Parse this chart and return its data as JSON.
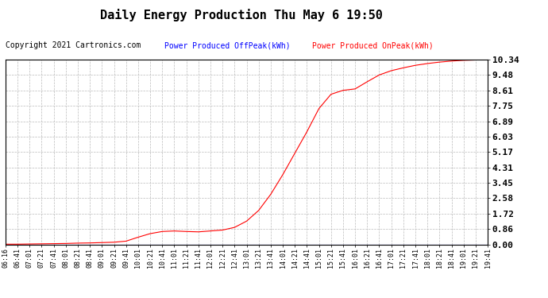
{
  "title": "Daily Energy Production Thu May 6 19:50",
  "copyright": "Copyright 2021 Cartronics.com",
  "legend_offpeak": "Power Produced OffPeak(kWh)",
  "legend_onpeak": "Power Produced OnPeak(kWh)",
  "offpeak_color": "blue",
  "onpeak_color": "red",
  "y_ticks": [
    0.0,
    0.86,
    1.72,
    2.58,
    3.45,
    4.31,
    5.17,
    6.03,
    6.89,
    7.75,
    8.61,
    9.48,
    10.34
  ],
  "ylim": [
    0.0,
    10.34
  ],
  "x_labels": [
    "06:16",
    "06:41",
    "07:01",
    "07:21",
    "07:41",
    "08:01",
    "08:21",
    "08:41",
    "09:01",
    "09:21",
    "09:41",
    "10:01",
    "10:21",
    "10:41",
    "11:01",
    "11:21",
    "11:41",
    "12:01",
    "12:21",
    "12:41",
    "13:01",
    "13:21",
    "13:41",
    "14:01",
    "14:21",
    "14:41",
    "15:01",
    "15:21",
    "15:41",
    "16:01",
    "16:21",
    "16:41",
    "17:01",
    "17:21",
    "17:41",
    "18:01",
    "18:21",
    "18:41",
    "19:01",
    "19:21",
    "19:41"
  ],
  "background_color": "white",
  "grid_color": "#bbbbbb",
  "title_fontsize": 11,
  "copyright_fontsize": 7,
  "legend_fontsize": 7,
  "tick_fontsize": 6,
  "ytick_fontsize": 8,
  "onpeak_keypoints_x": [
    0,
    1,
    2,
    3,
    4,
    5,
    6,
    7,
    8,
    9,
    10,
    11,
    12,
    13,
    14,
    15,
    16,
    17,
    18,
    19,
    20,
    21,
    22,
    23,
    24,
    25,
    26,
    27,
    28,
    29,
    30,
    31,
    32,
    33,
    34,
    35,
    36,
    37,
    38,
    39,
    40
  ],
  "onpeak_keypoints_y": [
    0.01,
    0.01,
    0.02,
    0.03,
    0.04,
    0.05,
    0.07,
    0.08,
    0.1,
    0.12,
    0.18,
    0.4,
    0.6,
    0.72,
    0.75,
    0.72,
    0.7,
    0.75,
    0.8,
    0.95,
    1.3,
    1.9,
    2.8,
    3.9,
    5.1,
    6.3,
    7.6,
    8.4,
    8.62,
    8.7,
    9.1,
    9.48,
    9.72,
    9.88,
    10.02,
    10.12,
    10.2,
    10.26,
    10.3,
    10.32,
    10.34
  ],
  "offpeak_keypoints_x": [
    0,
    1,
    2,
    3,
    4,
    5,
    6,
    7,
    8,
    9,
    10,
    11,
    12,
    13,
    14,
    15,
    16,
    17,
    18,
    19,
    20,
    21,
    22,
    23,
    24,
    25,
    26,
    27,
    28,
    29,
    30,
    31,
    32,
    33,
    34,
    35,
    36,
    37,
    38,
    39,
    40
  ],
  "offpeak_keypoints_y": [
    0.0,
    0.0,
    0.0,
    0.0,
    0.0,
    0.0,
    0.0,
    0.0,
    0.0,
    0.0,
    0.0,
    0.0,
    0.0,
    0.0,
    0.0,
    0.0,
    0.0,
    0.0,
    0.0,
    0.0,
    0.0,
    0.0,
    0.0,
    0.0,
    0.0,
    0.0,
    0.0,
    0.0,
    0.0,
    0.0,
    0.0,
    0.0,
    0.0,
    0.0,
    0.0,
    0.0,
    0.0,
    0.0,
    0.0,
    0.0,
    0.0
  ]
}
